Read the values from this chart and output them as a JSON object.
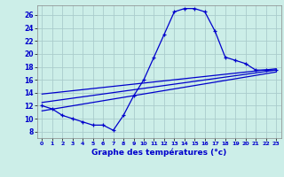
{
  "xlabel": "Graphe des températures (°c)",
  "bg_color": "#cceee8",
  "line_color": "#0000cc",
  "grid_color": "#aacccc",
  "y_ticks": [
    8,
    10,
    12,
    14,
    16,
    18,
    20,
    22,
    24,
    26
  ],
  "ylim": [
    7.0,
    27.5
  ],
  "xlim": [
    -0.5,
    23.5
  ],
  "x_ticks": [
    0,
    1,
    2,
    3,
    4,
    5,
    6,
    7,
    8,
    9,
    10,
    11,
    12,
    13,
    14,
    15,
    16,
    17,
    18,
    19,
    20,
    21,
    22,
    23
  ],
  "line1_x": [
    0,
    1,
    2,
    3,
    4,
    5,
    6,
    7,
    8,
    9,
    10,
    11,
    12,
    13,
    14,
    15,
    16,
    17,
    18,
    19,
    20,
    21,
    22,
    23
  ],
  "line1_y": [
    12.0,
    11.5,
    10.5,
    10.0,
    9.5,
    9.0,
    9.0,
    8.2,
    10.5,
    13.5,
    16.0,
    19.5,
    23.0,
    26.5,
    27.0,
    27.0,
    26.5,
    23.5,
    19.5,
    19.0,
    18.5,
    17.5,
    17.5,
    17.5
  ],
  "line2_x": [
    0,
    23
  ],
  "line2_y": [
    12.5,
    17.5
  ],
  "line3_x": [
    0,
    23
  ],
  "line3_y": [
    13.8,
    17.7
  ],
  "line4_x": [
    0,
    23
  ],
  "line4_y": [
    11.2,
    17.2
  ]
}
